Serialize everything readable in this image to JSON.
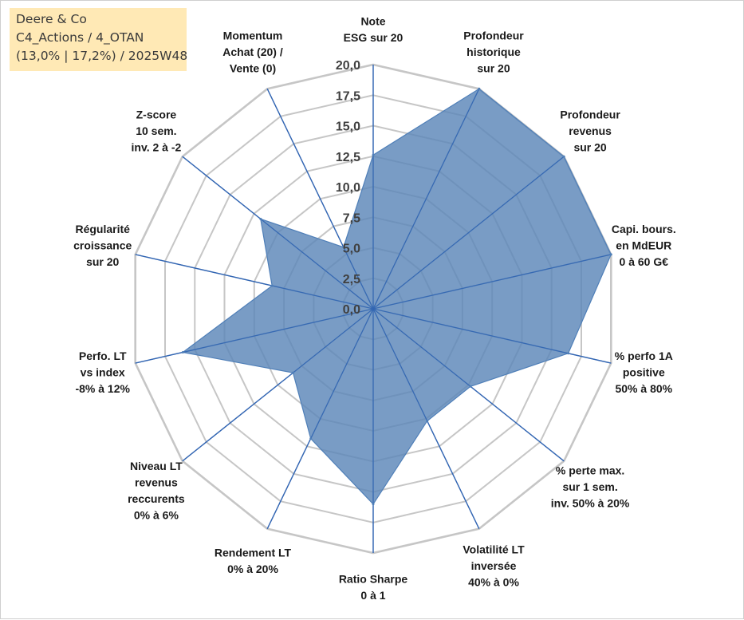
{
  "info": {
    "company": "Deere & Co",
    "portfolio": "C4_Actions / 4_OTAN",
    "stats": "(13,0% | 17,2%) / 2025W48"
  },
  "colors": {
    "fill": "#5b86b8",
    "stroke": "#4f7fb8",
    "spoke": "#3366b3",
    "grid": "#c6c6c6",
    "info_bg": "#ffe9b5"
  },
  "chart_data": {
    "type": "radar",
    "title": "",
    "rlim": [
      0,
      20
    ],
    "r_ticks": [
      "0,0",
      "2,5",
      "5,0",
      "7,5",
      "10,0",
      "12,5",
      "15,0",
      "17,5",
      "20,0"
    ],
    "categories": [
      [
        "Note",
        "ESG sur 20"
      ],
      [
        "Profondeur",
        "historique",
        "sur 20"
      ],
      [
        "Profondeur",
        "revenus",
        "sur 20"
      ],
      [
        "Capi. bours.",
        "en MdEUR",
        "0 à 60 G€"
      ],
      [
        "% perfo 1A",
        "positive",
        "50% à 80%"
      ],
      [
        "% perte max.",
        "sur 1 sem.",
        "inv. 50% à 20%"
      ],
      [
        "Volatilité LT",
        "inversée",
        "40% à 0%"
      ],
      [
        "Ratio Sharpe",
        "0 à 1"
      ],
      [
        "Rendement LT",
        "0% à 20%"
      ],
      [
        "Niveau LT",
        "revenus",
        "reccurents",
        "0% à 6%"
      ],
      [
        "Perfo. LT",
        "vs index",
        "-8% à 12%"
      ],
      [
        "Régularité",
        "croissance",
        "sur 20"
      ],
      [
        "Z-score",
        "10 sem.",
        "inv. 2 à -2"
      ],
      [
        "Momentum",
        "Achat (20) /",
        "Vente (0)"
      ]
    ],
    "series": [
      {
        "name": "Deere & Co",
        "values": [
          12.6,
          20.0,
          20.0,
          20.0,
          16.4,
          10.2,
          10.2,
          16.0,
          11.8,
          8.4,
          16.0,
          8.5,
          11.8,
          5.6
        ]
      }
    ]
  }
}
